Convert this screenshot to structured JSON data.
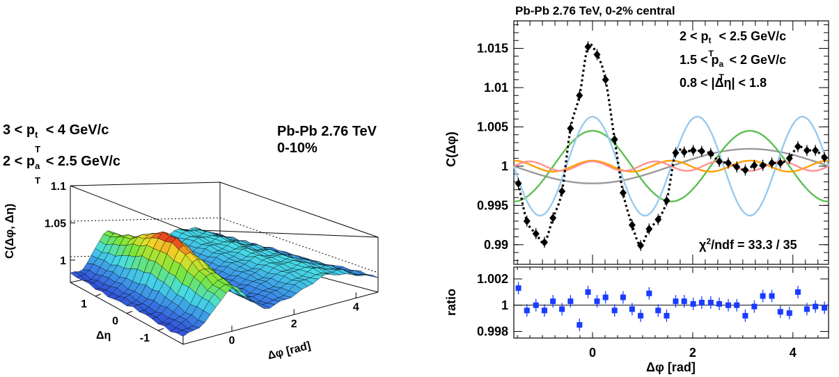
{
  "left_panel": {
    "pt_trigger": {
      "pre": "3 < p",
      "sup": "t",
      "sub": "T",
      "post": " < 4 GeV/c"
    },
    "pt_assoc": {
      "pre": "2 < p",
      "sup": "a",
      "sub": "T",
      "post": " < 2.5 GeV/c"
    },
    "system": "Pb-Pb 2.76 TeV",
    "centrality": "0-10%",
    "z_axis_label": "C(Δφ, Δη)",
    "z_ticks": [
      "1",
      "1.05",
      "1.1"
    ],
    "x_axis_label": "Δφ [rad]",
    "x_ticks": [
      "0",
      "2",
      "4"
    ],
    "y_axis_label": "Δη",
    "y_ticks": [
      "1",
      "0",
      "-1"
    ]
  },
  "right_panel": {
    "title": "Pb-Pb 2.76 TeV, 0-2% central",
    "pt_trigger": {
      "pre": "2 < p",
      "sup": "t",
      "sub": "T",
      "post": " < 2.5 GeV/c"
    },
    "pt_assoc": {
      "pre": "1.5 < p",
      "sup": "a",
      "sub": "T",
      "post": " < 2 GeV/c"
    },
    "eta_gap": "0.8 < |Δη| < 1.8",
    "chi2": {
      "pre": "χ",
      "sup": "2",
      "post": "/ndf = 33.3 / 35"
    },
    "xlabel": "Δφ [rad]",
    "ylabel_top": "C(Δφ)",
    "ylabel_bottom": "ratio",
    "colors": {
      "data": "#000000",
      "fit": "#000000",
      "ratio": "#1a3cff",
      "v1": "#999999",
      "v2": "#5bbf50",
      "v3": "#99c9ee",
      "v4": "#ff9f00",
      "v5": "#ff9090"
    }
  },
  "chart_data": [
    {
      "type": "surface",
      "title": "",
      "xlabel": "Δφ [rad]",
      "ylabel": "Δη",
      "zlabel": "C(Δφ, Δη)",
      "xlim": [
        -1.57,
        4.71
      ],
      "ylim": [
        -1.8,
        1.8
      ],
      "zlim": [
        0.97,
        1.1
      ],
      "ridge_peak_z": 1.06,
      "away_side_z": 1.01,
      "baseline_z": 0.98
    },
    {
      "type": "scatter",
      "title": "Pb-Pb 2.76 TeV, 0-2% central",
      "xlabel": "Δφ [rad]",
      "ylabel": "C(Δφ)",
      "xlim": [
        -1.571,
        4.712
      ],
      "ylim": [
        0.9875,
        1.0185
      ],
      "x": [
        -1.48,
        -1.31,
        -1.13,
        -0.96,
        -0.79,
        -0.61,
        -0.44,
        -0.26,
        -0.09,
        0.09,
        0.26,
        0.44,
        0.61,
        0.79,
        0.96,
        1.13,
        1.31,
        1.48,
        1.66,
        1.83,
        2.01,
        2.18,
        2.36,
        2.53,
        2.71,
        2.88,
        3.05,
        3.23,
        3.4,
        3.58,
        3.75,
        3.93,
        4.1,
        4.28,
        4.45,
        4.63
      ],
      "y": [
        0.9978,
        0.993,
        0.9914,
        0.9903,
        0.9934,
        0.9968,
        1.0048,
        1.009,
        1.0152,
        1.0142,
        1.011,
        1.0034,
        0.9966,
        0.9925,
        0.9899,
        0.992,
        0.9932,
        0.9956,
        1.0017,
        1.0018,
        1.002,
        1.0019,
        1.0016,
        1.0006,
        1.0004,
        0.9999,
        0.9995,
        1.0001,
        1.0001,
        1.0004,
        1.0004,
        1.001,
        1.0025,
        1.002,
        1.002,
        1.0011
      ],
      "fit_curve": {
        "components": {
          "v1": 0.0022,
          "v2": 0.0045,
          "v3": 0.0063,
          "v4": 0.0007,
          "v5": 0.0006
        }
      },
      "ratio": {
        "ylabel": "ratio",
        "ylim": [
          0.9975,
          1.0029
        ],
        "y": [
          1.0013,
          0.9996,
          1.0,
          0.9996,
          1.0003,
          0.9997,
          1.0003,
          0.9985,
          1.001,
          1.0003,
          1.0006,
          0.9996,
          1.0006,
          0.9997,
          0.9992,
          1.0009,
          0.9996,
          0.9992,
          1.0003,
          1.0003,
          1.0001,
          1.0002,
          1.0002,
          1.0001,
          1.0,
          1.0,
          0.9992,
          0.9999,
          1.0007,
          1.0007,
          0.9995,
          0.9994,
          1.001,
          0.9997,
          0.9999,
          0.9998
        ]
      },
      "ticks_x": [
        "0",
        "2",
        "4"
      ],
      "ticks_y": [
        "0.99",
        "0.995",
        "1",
        "1.005",
        "1.01",
        "1.015"
      ],
      "ticks_ratio": [
        "0.998",
        "1",
        "1.002"
      ]
    }
  ]
}
